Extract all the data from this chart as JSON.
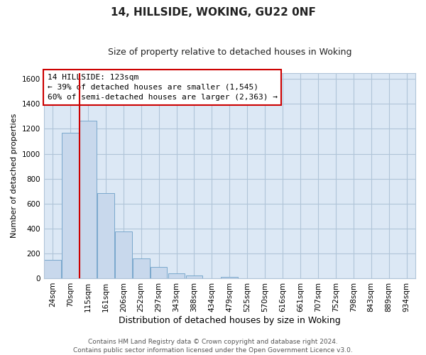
{
  "title": "14, HILLSIDE, WOKING, GU22 0NF",
  "subtitle": "Size of property relative to detached houses in Woking",
  "xlabel": "Distribution of detached houses by size in Woking",
  "ylabel": "Number of detached properties",
  "bar_labels": [
    "24sqm",
    "70sqm",
    "115sqm",
    "161sqm",
    "206sqm",
    "252sqm",
    "297sqm",
    "343sqm",
    "388sqm",
    "434sqm",
    "479sqm",
    "525sqm",
    "570sqm",
    "616sqm",
    "661sqm",
    "707sqm",
    "752sqm",
    "798sqm",
    "843sqm",
    "889sqm",
    "934sqm"
  ],
  "bar_values": [
    150,
    1170,
    1265,
    685,
    375,
    160,
    90,
    37,
    22,
    0,
    12,
    0,
    0,
    0,
    0,
    0,
    0,
    0,
    0,
    0,
    0
  ],
  "bar_color": "#c8d8ec",
  "bar_edge_color": "#7aa8cc",
  "vline_x": 1.5,
  "vline_color": "#cc0000",
  "ylim": [
    0,
    1650
  ],
  "yticks": [
    0,
    200,
    400,
    600,
    800,
    1000,
    1200,
    1400,
    1600
  ],
  "annotation_line1": "14 HILLSIDE: 123sqm",
  "annotation_line2": "← 39% of detached houses are smaller (1,545)",
  "annotation_line3": "60% of semi-detached houses are larger (2,363) →",
  "footer_line1": "Contains HM Land Registry data © Crown copyright and database right 2024.",
  "footer_line2": "Contains public sector information licensed under the Open Government Licence v3.0.",
  "fig_bg_color": "#ffffff",
  "plot_bg_color": "#dce8f5",
  "grid_color": "#b0c4d8",
  "title_fontsize": 11,
  "subtitle_fontsize": 9,
  "ylabel_fontsize": 8,
  "xlabel_fontsize": 9,
  "tick_fontsize": 7.5,
  "annotation_fontsize": 8,
  "footer_fontsize": 6.5
}
